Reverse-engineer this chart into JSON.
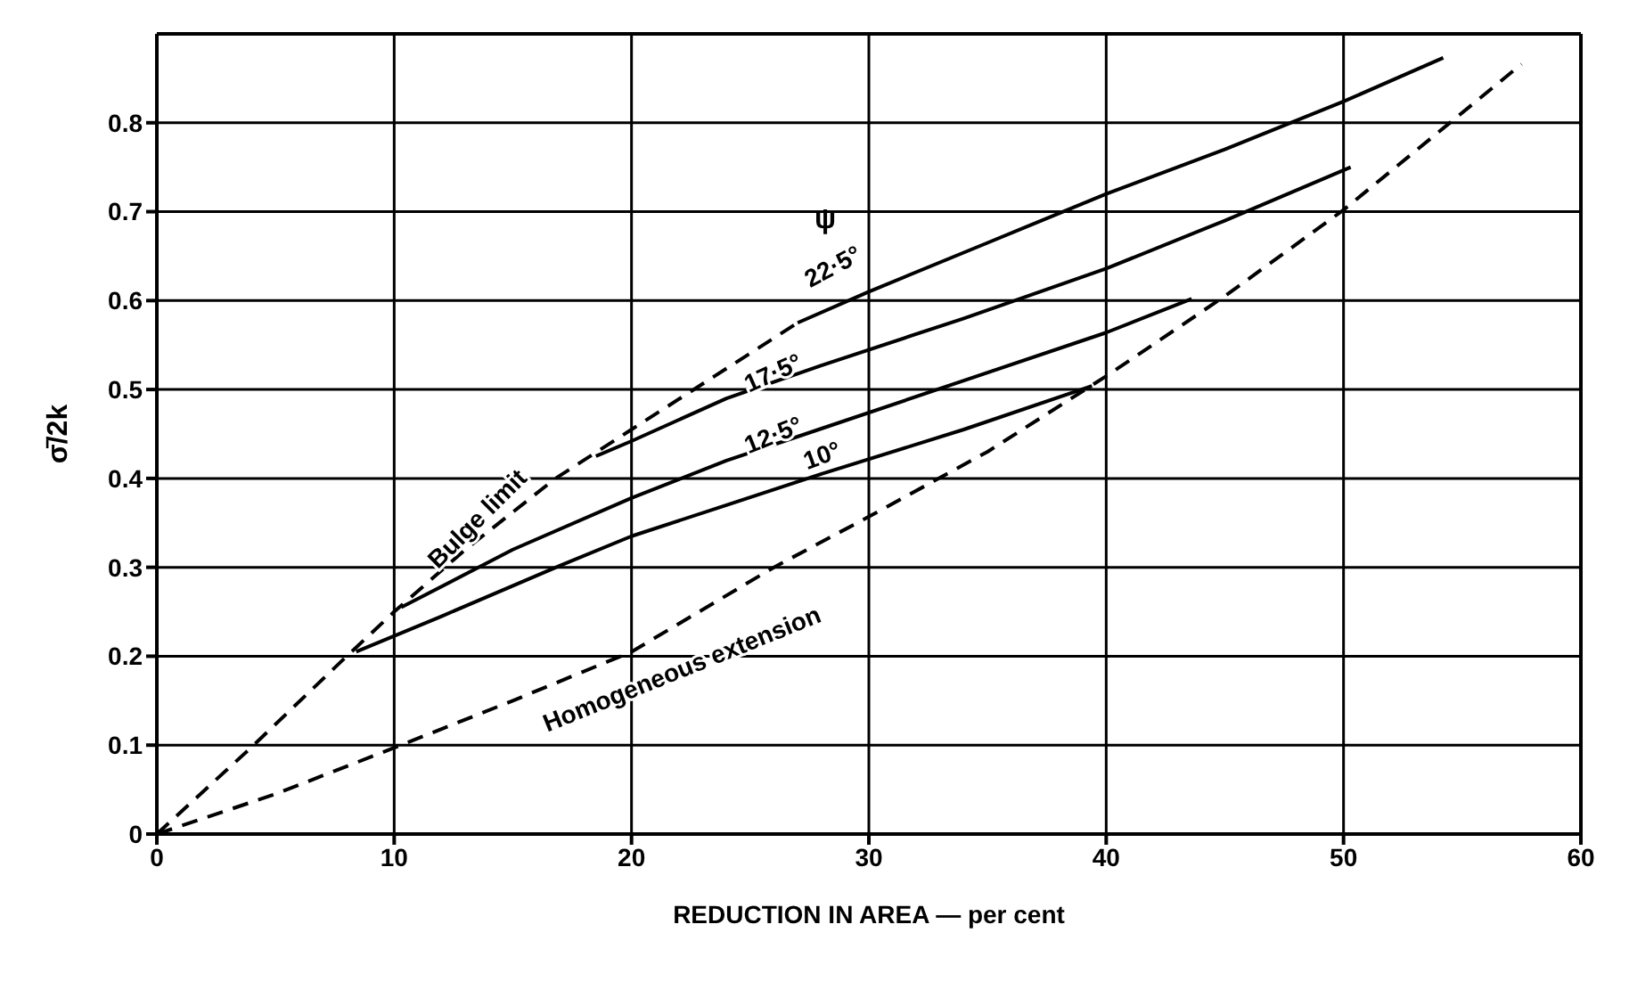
{
  "chart_data": {
    "type": "line",
    "xlabel": "REDUCTION IN AREA — per cent",
    "ylabel": "σ̄/2k",
    "xlim": [
      0,
      60
    ],
    "xticks": [
      0,
      10,
      20,
      30,
      40,
      50,
      60
    ],
    "ylim": [
      0,
      0.9
    ],
    "yticks": [
      0,
      0.1,
      0.2,
      0.3,
      0.4,
      0.5,
      0.6,
      0.7,
      0.8
    ],
    "grid": true,
    "legend": false,
    "marker": "none",
    "annotations": [
      "ψ"
    ],
    "series": [
      {
        "name": "22·5°",
        "color": "#000000",
        "line_style": "solid",
        "x": [
          27,
          30,
          35,
          40,
          45,
          50,
          54.2
        ],
        "values": [
          0.575,
          0.61,
          0.665,
          0.72,
          0.77,
          0.824,
          0.873
        ]
      },
      {
        "name": "17·5°",
        "color": "#000000",
        "line_style": "solid",
        "x": [
          18.5,
          20,
          24,
          28,
          34,
          40,
          45,
          50.3
        ],
        "values": [
          0.425,
          0.442,
          0.49,
          0.527,
          0.58,
          0.636,
          0.69,
          0.75
        ]
      },
      {
        "name": "12·5°",
        "color": "#000000",
        "line_style": "solid",
        "x": [
          10.3,
          15,
          20,
          24,
          28,
          34,
          40,
          43.6
        ],
        "values": [
          0.255,
          0.32,
          0.378,
          0.42,
          0.456,
          0.51,
          0.564,
          0.602
        ]
      },
      {
        "name": "10°",
        "color": "#000000",
        "line_style": "solid",
        "x": [
          8.4,
          12,
          17,
          20,
          24,
          28,
          34,
          39.4
        ],
        "values": [
          0.205,
          0.245,
          0.302,
          0.335,
          0.37,
          0.405,
          0.455,
          0.504
        ]
      },
      {
        "name": "Bulge limit",
        "color": "#000000",
        "line_style": "dashed",
        "x": [
          0,
          4,
          8,
          10,
          13,
          16.8,
          20,
          23.5,
          27
        ],
        "values": [
          0,
          0.098,
          0.2,
          0.25,
          0.32,
          0.4,
          0.455,
          0.515,
          0.575
        ]
      },
      {
        "name": "Homogeneous extension",
        "color": "#000000",
        "line_style": "dashed",
        "x": [
          0,
          5,
          10,
          15,
          20,
          26,
          30,
          35,
          40,
          45,
          50,
          57.5
        ],
        "values": [
          0,
          0.045,
          0.097,
          0.15,
          0.205,
          0.3,
          0.357,
          0.43,
          0.515,
          0.605,
          0.702,
          0.866
        ]
      }
    ]
  }
}
